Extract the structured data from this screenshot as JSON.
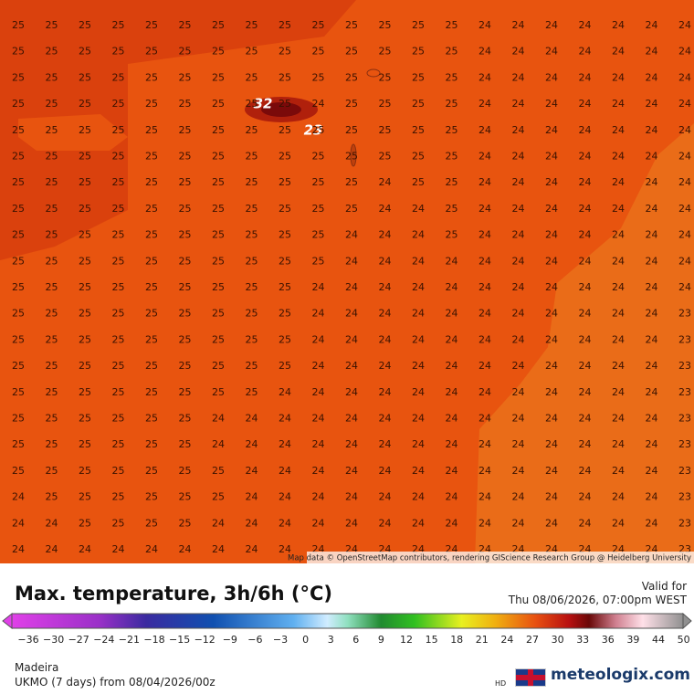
{
  "map": {
    "attribution": "Map data © OpenStreetMap contributors, rendering GIScience Research Group @ Heidelberg University",
    "contour_labels": [
      "32",
      "23"
    ],
    "grid": [
      [
        25,
        25,
        25,
        25,
        25,
        25,
        25,
        25,
        25,
        25,
        25,
        25,
        25,
        25,
        24,
        24,
        24,
        24,
        24,
        24,
        24
      ],
      [
        25,
        25,
        25,
        25,
        25,
        25,
        25,
        25,
        25,
        25,
        25,
        25,
        25,
        25,
        24,
        24,
        24,
        24,
        24,
        24,
        24
      ],
      [
        25,
        25,
        25,
        25,
        25,
        25,
        25,
        25,
        25,
        25,
        25,
        25,
        25,
        25,
        24,
        24,
        24,
        24,
        24,
        24,
        24
      ],
      [
        25,
        25,
        25,
        25,
        25,
        25,
        25,
        25,
        25,
        24,
        25,
        25,
        25,
        25,
        24,
        24,
        24,
        24,
        24,
        24,
        24
      ],
      [
        25,
        25,
        25,
        25,
        25,
        25,
        25,
        25,
        25,
        25,
        25,
        25,
        25,
        25,
        24,
        24,
        24,
        24,
        24,
        24,
        24
      ],
      [
        25,
        25,
        25,
        25,
        25,
        25,
        25,
        25,
        25,
        25,
        25,
        25,
        25,
        25,
        24,
        24,
        24,
        24,
        24,
        24,
        24
      ],
      [
        25,
        25,
        25,
        25,
        25,
        25,
        25,
        25,
        25,
        25,
        25,
        24,
        25,
        25,
        24,
        24,
        24,
        24,
        24,
        24,
        24
      ],
      [
        25,
        25,
        25,
        25,
        25,
        25,
        25,
        25,
        25,
        25,
        25,
        24,
        24,
        25,
        24,
        24,
        24,
        24,
        24,
        24,
        24
      ],
      [
        25,
        25,
        25,
        25,
        25,
        25,
        25,
        25,
        25,
        25,
        24,
        24,
        24,
        25,
        24,
        24,
        24,
        24,
        24,
        24,
        24
      ],
      [
        25,
        25,
        25,
        25,
        25,
        25,
        25,
        25,
        25,
        25,
        24,
        24,
        24,
        24,
        24,
        24,
        24,
        24,
        24,
        24,
        24
      ],
      [
        25,
        25,
        25,
        25,
        25,
        25,
        25,
        25,
        25,
        24,
        24,
        24,
        24,
        24,
        24,
        24,
        24,
        24,
        24,
        24,
        24
      ],
      [
        25,
        25,
        25,
        25,
        25,
        25,
        25,
        25,
        25,
        24,
        24,
        24,
        24,
        24,
        24,
        24,
        24,
        24,
        24,
        24,
        23
      ],
      [
        25,
        25,
        25,
        25,
        25,
        25,
        25,
        25,
        25,
        24,
        24,
        24,
        24,
        24,
        24,
        24,
        24,
        24,
        24,
        24,
        23
      ],
      [
        25,
        25,
        25,
        25,
        25,
        25,
        25,
        25,
        25,
        24,
        24,
        24,
        24,
        24,
        24,
        24,
        24,
        24,
        24,
        24,
        23
      ],
      [
        25,
        25,
        25,
        25,
        25,
        25,
        25,
        25,
        24,
        24,
        24,
        24,
        24,
        24,
        24,
        24,
        24,
        24,
        24,
        24,
        23
      ],
      [
        25,
        25,
        25,
        25,
        25,
        25,
        24,
        24,
        24,
        24,
        24,
        24,
        24,
        24,
        24,
        24,
        24,
        24,
        24,
        24,
        23
      ],
      [
        25,
        25,
        25,
        25,
        25,
        25,
        24,
        24,
        24,
        24,
        24,
        24,
        24,
        24,
        24,
        24,
        24,
        24,
        24,
        24,
        23
      ],
      [
        25,
        25,
        25,
        25,
        25,
        25,
        25,
        24,
        24,
        24,
        24,
        24,
        24,
        24,
        24,
        24,
        24,
        24,
        24,
        24,
        23
      ],
      [
        24,
        25,
        25,
        25,
        25,
        25,
        25,
        24,
        24,
        24,
        24,
        24,
        24,
        24,
        24,
        24,
        24,
        24,
        24,
        24,
        23
      ],
      [
        24,
        24,
        25,
        25,
        25,
        25,
        24,
        24,
        24,
        24,
        24,
        24,
        24,
        24,
        24,
        24,
        24,
        24,
        24,
        24,
        23
      ],
      [
        24,
        24,
        24,
        24,
        24,
        24,
        24,
        24,
        24,
        24,
        24,
        24,
        24,
        24,
        24,
        24,
        24,
        24,
        24,
        24,
        23
      ]
    ]
  },
  "legend": {
    "title": "Max. temperature, 3h/6h (°C)",
    "valid_label": "Valid for",
    "valid_time": "Thu 08/06/2026, 07:00pm WEST",
    "ticks": [
      {
        "value": -36,
        "label": "−36"
      },
      {
        "value": -30,
        "label": "−30"
      },
      {
        "value": -27,
        "label": "−27"
      },
      {
        "value": -24,
        "label": "−24"
      },
      {
        "value": -21,
        "label": "−21"
      },
      {
        "value": -18,
        "label": "−18"
      },
      {
        "value": -15,
        "label": "−15"
      },
      {
        "value": -12,
        "label": "−12"
      },
      {
        "value": -9,
        "label": "−9"
      },
      {
        "value": -6,
        "label": "−6"
      },
      {
        "value": -3,
        "label": "−3"
      },
      0,
      3,
      6,
      9,
      12,
      15,
      18,
      21,
      24,
      27,
      30,
      33,
      36,
      39,
      44,
      50
    ]
  },
  "footer": {
    "region": "Madeira",
    "model": "UKMO (7 days) from 08/04/2026/00z",
    "hd": "HD",
    "brand": "meteologix.com"
  }
}
